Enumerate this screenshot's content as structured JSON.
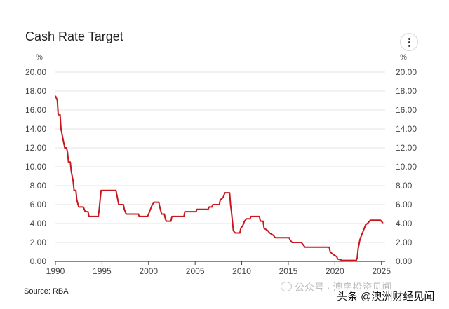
{
  "chart_data": {
    "type": "line",
    "title": "Cash Rate Target",
    "y_unit_left": "%",
    "y_unit_right": "%",
    "ylim": [
      0,
      20
    ],
    "y_ticks": [
      "0.00",
      "2.00",
      "4.00",
      "6.00",
      "8.00",
      "10.00",
      "12.00",
      "14.00",
      "16.00",
      "18.00",
      "20.00"
    ],
    "xlim": [
      1990,
      2025.4
    ],
    "x_ticks": [
      "1990",
      "1995",
      "2000",
      "2005",
      "2010",
      "2015",
      "2020",
      "2025"
    ],
    "grid": true,
    "series": [
      {
        "color": "#c8171e",
        "points": [
          [
            1990.0,
            17.5
          ],
          [
            1990.2,
            17.0
          ],
          [
            1990.3,
            15.5
          ],
          [
            1990.5,
            15.5
          ],
          [
            1990.6,
            14.0
          ],
          [
            1990.8,
            13.0
          ],
          [
            1991.0,
            12.0
          ],
          [
            1991.2,
            12.0
          ],
          [
            1991.3,
            11.5
          ],
          [
            1991.4,
            10.5
          ],
          [
            1991.6,
            10.5
          ],
          [
            1991.7,
            9.5
          ],
          [
            1991.9,
            8.5
          ],
          [
            1992.0,
            7.5
          ],
          [
            1992.2,
            7.5
          ],
          [
            1992.3,
            6.5
          ],
          [
            1992.5,
            5.75
          ],
          [
            1993.0,
            5.75
          ],
          [
            1993.2,
            5.25
          ],
          [
            1993.5,
            5.25
          ],
          [
            1993.6,
            4.75
          ],
          [
            1994.6,
            4.75
          ],
          [
            1994.7,
            5.5
          ],
          [
            1994.8,
            6.5
          ],
          [
            1994.9,
            7.5
          ],
          [
            1996.5,
            7.5
          ],
          [
            1996.6,
            7.0
          ],
          [
            1996.8,
            6.0
          ],
          [
            1997.3,
            6.0
          ],
          [
            1997.4,
            5.5
          ],
          [
            1997.6,
            5.0
          ],
          [
            1998.9,
            5.0
          ],
          [
            1999.0,
            4.75
          ],
          [
            1999.9,
            4.75
          ],
          [
            2000.0,
            5.0
          ],
          [
            2000.2,
            5.5
          ],
          [
            2000.4,
            6.0
          ],
          [
            2000.6,
            6.25
          ],
          [
            2001.1,
            6.25
          ],
          [
            2001.2,
            5.75
          ],
          [
            2001.4,
            5.0
          ],
          [
            2001.7,
            5.0
          ],
          [
            2001.8,
            4.5
          ],
          [
            2001.9,
            4.25
          ],
          [
            2002.4,
            4.25
          ],
          [
            2002.5,
            4.75
          ],
          [
            2003.8,
            4.75
          ],
          [
            2003.9,
            5.25
          ],
          [
            2005.1,
            5.25
          ],
          [
            2005.2,
            5.5
          ],
          [
            2006.4,
            5.5
          ],
          [
            2006.5,
            5.75
          ],
          [
            2006.8,
            5.75
          ],
          [
            2006.9,
            6.0
          ],
          [
            2007.6,
            6.0
          ],
          [
            2007.7,
            6.5
          ],
          [
            2008.0,
            6.75
          ],
          [
            2008.2,
            7.25
          ],
          [
            2008.7,
            7.25
          ],
          [
            2008.8,
            6.0
          ],
          [
            2008.9,
            5.25
          ],
          [
            2009.0,
            4.25
          ],
          [
            2009.1,
            3.25
          ],
          [
            2009.3,
            3.0
          ],
          [
            2009.8,
            3.0
          ],
          [
            2009.9,
            3.5
          ],
          [
            2010.1,
            3.75
          ],
          [
            2010.3,
            4.25
          ],
          [
            2010.5,
            4.5
          ],
          [
            2010.9,
            4.5
          ],
          [
            2011.0,
            4.75
          ],
          [
            2011.9,
            4.75
          ],
          [
            2012.0,
            4.25
          ],
          [
            2012.3,
            4.25
          ],
          [
            2012.4,
            3.5
          ],
          [
            2012.8,
            3.25
          ],
          [
            2013.0,
            3.0
          ],
          [
            2013.4,
            2.75
          ],
          [
            2013.6,
            2.5
          ],
          [
            2015.1,
            2.5
          ],
          [
            2015.2,
            2.25
          ],
          [
            2015.4,
            2.0
          ],
          [
            2016.4,
            2.0
          ],
          [
            2016.6,
            1.75
          ],
          [
            2016.8,
            1.5
          ],
          [
            2019.4,
            1.5
          ],
          [
            2019.5,
            1.0
          ],
          [
            2019.8,
            0.75
          ],
          [
            2020.2,
            0.5
          ],
          [
            2020.3,
            0.25
          ],
          [
            2020.8,
            0.1
          ],
          [
            2022.3,
            0.1
          ],
          [
            2022.4,
            0.35
          ],
          [
            2022.5,
            1.35
          ],
          [
            2022.7,
            2.35
          ],
          [
            2022.9,
            2.85
          ],
          [
            2023.1,
            3.35
          ],
          [
            2023.3,
            3.85
          ],
          [
            2023.6,
            4.1
          ],
          [
            2023.8,
            4.35
          ],
          [
            2024.9,
            4.35
          ],
          [
            2025.1,
            4.1
          ],
          [
            2025.2,
            4.1
          ]
        ]
      }
    ],
    "source": "Source: RBA"
  },
  "overlay": {
    "watermark_left": "公众号 · 澳房投资见闻",
    "watermark_right": "头条 @澳洲财经见闻"
  },
  "icons": {
    "menu": "more-vert-icon"
  }
}
